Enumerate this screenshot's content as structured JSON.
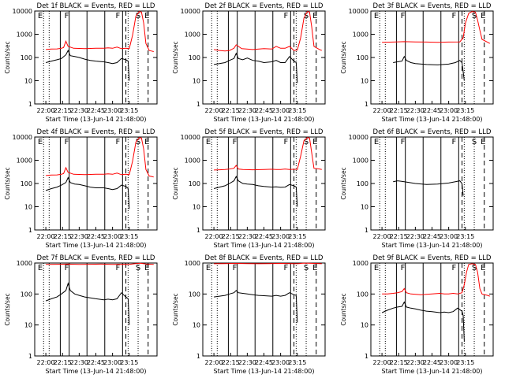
{
  "chart_data": [
    {
      "type": "line",
      "title": "Det 1f BLACK = Events, RED = LLD",
      "xlabel": "Start Time (13-Jun-14 21:48:00)",
      "ylabel": "Counts/sec",
      "scale_y": "log",
      "ylim": [
        1,
        10000
      ],
      "xticks": [
        "22:00",
        "22:15",
        "22:30",
        "22:45",
        "23:00",
        "23:15"
      ],
      "yticks": [
        "1",
        "10",
        "100",
        "1000",
        "10000"
      ],
      "markers": [
        "E",
        "F",
        "F",
        "S",
        "E"
      ],
      "series": [
        {
          "color": "#ff0000",
          "x": [
            0,
            5,
            10,
            14,
            16,
            18,
            20,
            25,
            35,
            45,
            52,
            56,
            60,
            64,
            68,
            72,
            75,
            78,
            81,
            84,
            86,
            88,
            90,
            93,
            95,
            97
          ],
          "y": [
            220,
            230,
            235,
            250,
            270,
            500,
            300,
            250,
            240,
            250,
            250,
            260,
            250,
            280,
            240,
            250,
            240,
            900,
            6000,
            9500,
            9000,
            3000,
            400,
            200,
            190,
            180
          ]
        },
        {
          "color": "#000000",
          "x": [
            0,
            5,
            10,
            14,
            18,
            20,
            22,
            26,
            30,
            35,
            40,
            45,
            52,
            56,
            60,
            64,
            68,
            72,
            74,
            75
          ],
          "y": [
            60,
            70,
            80,
            90,
            130,
            200,
            120,
            110,
            100,
            85,
            75,
            70,
            65,
            60,
            55,
            60,
            90,
            80,
            70,
            10
          ]
        }
      ]
    },
    {
      "type": "line",
      "title": "Det 2f BLACK = Events, RED = LLD",
      "xlabel": "Start Time (13-Jun-14 21:48:00)",
      "ylabel": "Counts/sec",
      "scale_y": "log",
      "ylim": [
        1,
        10000
      ],
      "xticks": [
        "22:00",
        "22:15",
        "22:30",
        "22:45",
        "23:00",
        "23:15"
      ],
      "yticks": [
        "1",
        "10",
        "100",
        "1000",
        "10000"
      ],
      "markers": [
        "F",
        "S",
        "E"
      ],
      "series": [
        {
          "color": "#ff0000",
          "x": [
            0,
            5,
            10,
            14,
            18,
            20,
            25,
            35,
            45,
            52,
            56,
            60,
            64,
            68,
            72,
            75,
            78,
            81,
            84,
            86,
            88,
            90,
            95,
            97
          ],
          "y": [
            220,
            200,
            190,
            200,
            250,
            350,
            240,
            220,
            240,
            230,
            300,
            250,
            250,
            300,
            200,
            210,
            700,
            5000,
            9500,
            9000,
            2000,
            300,
            220,
            200
          ]
        },
        {
          "color": "#000000",
          "x": [
            0,
            5,
            10,
            14,
            18,
            20,
            22,
            26,
            30,
            35,
            40,
            45,
            52,
            56,
            60,
            64,
            68,
            72,
            74,
            75
          ],
          "y": [
            50,
            55,
            60,
            75,
            90,
            150,
            90,
            80,
            95,
            75,
            70,
            60,
            65,
            75,
            60,
            60,
            110,
            70,
            60,
            8
          ]
        }
      ]
    },
    {
      "type": "line",
      "title": "Det 3f BLACK = Events, RED = LLD",
      "xlabel": "Start Time (13-Jun-14 21:48:00)",
      "ylabel": "Counts/sec",
      "scale_y": "log",
      "ylim": [
        1,
        10000
      ],
      "xticks": [
        "22:00",
        "22:15",
        "22:30",
        "22:45",
        "23:00",
        "23:15"
      ],
      "yticks": [
        "1",
        "10",
        "100",
        "1000",
        "10000"
      ],
      "markers": [
        "E",
        "F",
        "F",
        "S",
        "E"
      ],
      "series": [
        {
          "color": "#ff0000",
          "x": [
            0,
            10,
            20,
            30,
            40,
            50,
            60,
            70,
            73,
            75,
            78,
            81,
            84,
            86,
            88,
            90,
            95,
            97
          ],
          "y": [
            450,
            460,
            480,
            470,
            460,
            450,
            460,
            470,
            700,
            3000,
            8000,
            9500,
            9000,
            4000,
            1500,
            600,
            450,
            400
          ]
        },
        {
          "color": "#000000",
          "x": [
            10,
            14,
            18,
            20,
            22,
            26,
            30,
            40,
            50,
            60,
            66,
            70,
            72,
            74
          ],
          "y": [
            60,
            65,
            70,
            110,
            75,
            60,
            55,
            50,
            48,
            52,
            60,
            75,
            60,
            10
          ]
        }
      ]
    },
    {
      "type": "line",
      "title": "Det 4f BLACK = Events, RED = LLD",
      "xlabel": "Start Time (13-Jun-14 21:48:00)",
      "ylabel": "Counts/sec",
      "scale_y": "log",
      "ylim": [
        1,
        10000
      ],
      "xticks": [
        "22:00",
        "22:15",
        "22:30",
        "22:45",
        "23:00",
        "23:15"
      ],
      "yticks": [
        "1",
        "10",
        "100",
        "1000",
        "10000"
      ],
      "markers": [
        "E",
        "F",
        "F",
        "S",
        "E"
      ],
      "series": [
        {
          "color": "#ff0000",
          "x": [
            0,
            5,
            10,
            14,
            16,
            18,
            20,
            25,
            35,
            45,
            52,
            56,
            60,
            64,
            68,
            72,
            75,
            78,
            81,
            84,
            86,
            88,
            90,
            93,
            95,
            97
          ],
          "y": [
            220,
            230,
            235,
            250,
            270,
            480,
            300,
            250,
            240,
            250,
            250,
            260,
            250,
            280,
            240,
            250,
            240,
            900,
            6000,
            9500,
            9000,
            3000,
            400,
            210,
            200,
            190
          ]
        },
        {
          "color": "#000000",
          "x": [
            0,
            5,
            10,
            14,
            18,
            20,
            22,
            26,
            30,
            35,
            40,
            45,
            52,
            56,
            60,
            64,
            68,
            72,
            74,
            75
          ],
          "y": [
            50,
            60,
            70,
            85,
            110,
            180,
            110,
            95,
            90,
            80,
            70,
            65,
            65,
            60,
            55,
            60,
            85,
            75,
            60,
            8
          ]
        }
      ]
    },
    {
      "type": "line",
      "title": "Det 5f BLACK = Events, RED = LLD",
      "xlabel": "Start Time (13-Jun-14 21:48:00)",
      "ylabel": "Counts/sec",
      "scale_y": "log",
      "ylim": [
        1,
        10000
      ],
      "xticks": [
        "22:00",
        "22:15",
        "22:30",
        "22:45",
        "23:00",
        "23:15"
      ],
      "yticks": [
        "1",
        "10",
        "100",
        "1000",
        "10000"
      ],
      "markers": [
        "E",
        "F",
        "F",
        "S",
        "E"
      ],
      "series": [
        {
          "color": "#ff0000",
          "x": [
            0,
            5,
            10,
            14,
            18,
            20,
            22,
            26,
            35,
            45,
            52,
            56,
            60,
            64,
            68,
            72,
            75,
            78,
            81,
            84,
            86,
            88,
            90,
            95,
            97
          ],
          "y": [
            380,
            390,
            400,
            420,
            450,
            600,
            420,
            400,
            390,
            400,
            410,
            400,
            400,
            420,
            400,
            410,
            400,
            1500,
            7000,
            9500,
            9000,
            2000,
            450,
            420,
            400
          ]
        },
        {
          "color": "#000000",
          "x": [
            0,
            5,
            10,
            14,
            18,
            20,
            22,
            26,
            30,
            35,
            40,
            45,
            52,
            56,
            60,
            64,
            68,
            72,
            74,
            75
          ],
          "y": [
            60,
            70,
            80,
            100,
            130,
            200,
            130,
            100,
            95,
            90,
            80,
            75,
            70,
            72,
            68,
            70,
            90,
            80,
            70,
            10
          ]
        }
      ]
    },
    {
      "type": "line",
      "title": "Det 6f BLACK = Events, RED = LLD",
      "xlabel": "Start Time (13-Jun-14 21:48:00)",
      "ylabel": "Counts/sec",
      "scale_y": "log",
      "ylim": [
        1,
        10000
      ],
      "xticks": [
        "22:00",
        "22:15",
        "22:30",
        "22:45",
        "23:00",
        "23:15"
      ],
      "yticks": [
        "1",
        "10",
        "100",
        "1000",
        "10000"
      ],
      "markers": [
        "E",
        "F",
        "F",
        "S",
        "E"
      ],
      "series": [
        {
          "color": "#000000",
          "x": [
            10,
            14,
            20,
            30,
            40,
            50,
            60,
            66,
            70,
            72,
            73
          ],
          "y": [
            120,
            130,
            120,
            100,
            90,
            95,
            105,
            120,
            130,
            100,
            30
          ]
        }
      ]
    },
    {
      "type": "line",
      "title": "Det 7f BLACK = Events, RED = LLD",
      "xlabel": "Start Time (13-Jun-14 21:48:00)",
      "ylabel": "Counts/sec",
      "scale_y": "log",
      "ylim": [
        1,
        1000
      ],
      "xticks": [
        "22:00",
        "22:15",
        "22:30",
        "22:45",
        "23:00",
        "23:15"
      ],
      "yticks": [
        "1",
        "10",
        "100",
        "1000"
      ],
      "markers": [
        "E",
        "F",
        "F",
        "S",
        "E"
      ],
      "series": [
        {
          "color": "#ff0000",
          "x": [
            0,
            10,
            20,
            30,
            40,
            50,
            60,
            70,
            75,
            80,
            85,
            90,
            95,
            97
          ],
          "y": [
            900,
            910,
            920,
            900,
            910,
            920,
            900,
            910,
            900,
            950,
            980,
            930,
            910,
            900
          ]
        },
        {
          "color": "#000000",
          "x": [
            0,
            5,
            10,
            14,
            18,
            20,
            22,
            26,
            30,
            35,
            40,
            45,
            52,
            56,
            60,
            64,
            68,
            72,
            74,
            75
          ],
          "y": [
            60,
            70,
            80,
            100,
            130,
            220,
            130,
            100,
            90,
            80,
            75,
            70,
            65,
            68,
            65,
            70,
            110,
            80,
            70,
            10
          ]
        }
      ]
    },
    {
      "type": "line",
      "title": "Det 8f BLACK = Events, RED = LLD",
      "xlabel": "Start Time (13-Jun-14 21:48:00)",
      "ylabel": "Counts/sec",
      "scale_y": "log",
      "ylim": [
        1,
        1000
      ],
      "xticks": [
        "22:00",
        "22:15",
        "22:30",
        "22:45",
        "23:00",
        "23:15"
      ],
      "yticks": [
        "1",
        "10",
        "100",
        "1000"
      ],
      "markers": [
        "E",
        "F",
        "F",
        "S",
        "E"
      ],
      "series": [
        {
          "color": "#ff0000",
          "x": [
            0,
            10,
            20,
            30,
            40,
            50,
            60,
            70,
            75,
            80,
            85,
            90,
            95,
            97
          ],
          "y": [
            950,
            960,
            970,
            960,
            950,
            960,
            970,
            960,
            950,
            980,
            990,
            970,
            960,
            950
          ]
        },
        {
          "color": "#000000",
          "x": [
            0,
            5,
            10,
            14,
            18,
            20,
            22,
            26,
            30,
            35,
            40,
            45,
            52,
            56,
            60,
            64,
            68,
            72,
            74,
            75
          ],
          "y": [
            80,
            85,
            90,
            100,
            110,
            130,
            110,
            105,
            100,
            95,
            90,
            88,
            85,
            90,
            85,
            90,
            110,
            95,
            90,
            12
          ]
        }
      ]
    },
    {
      "type": "line",
      "title": "Det 9f BLACK = Events, RED = LLD",
      "xlabel": "Start Time (13-Jun-14 21:48:00)",
      "ylabel": "Counts/sec",
      "scale_y": "log",
      "ylim": [
        1,
        1000
      ],
      "xticks": [
        "22:00",
        "22:15",
        "22:30",
        "22:45",
        "23:00",
        "23:15"
      ],
      "yticks": [
        "1",
        "10",
        "100",
        "1000"
      ],
      "markers": [
        "E",
        "F",
        "F",
        "S",
        "E"
      ],
      "series": [
        {
          "color": "#ff0000",
          "x": [
            0,
            5,
            10,
            14,
            18,
            20,
            22,
            26,
            35,
            45,
            52,
            56,
            60,
            64,
            68,
            72,
            74,
            76,
            78,
            81,
            84,
            86,
            88,
            90,
            95,
            97
          ],
          "y": [
            100,
            100,
            105,
            110,
            120,
            150,
            110,
            100,
            95,
            100,
            105,
            100,
            100,
            105,
            100,
            110,
            200,
            500,
            900,
            950,
            900,
            500,
            150,
            100,
            90,
            85
          ]
        },
        {
          "color": "#000000",
          "x": [
            0,
            5,
            10,
            14,
            18,
            20,
            22,
            26,
            30,
            35,
            40,
            45,
            52,
            56,
            60,
            64,
            68,
            72,
            73,
            74
          ],
          "y": [
            25,
            30,
            35,
            38,
            40,
            55,
            38,
            35,
            33,
            30,
            28,
            27,
            25,
            26,
            25,
            27,
            35,
            28,
            20,
            3
          ]
        }
      ]
    }
  ]
}
